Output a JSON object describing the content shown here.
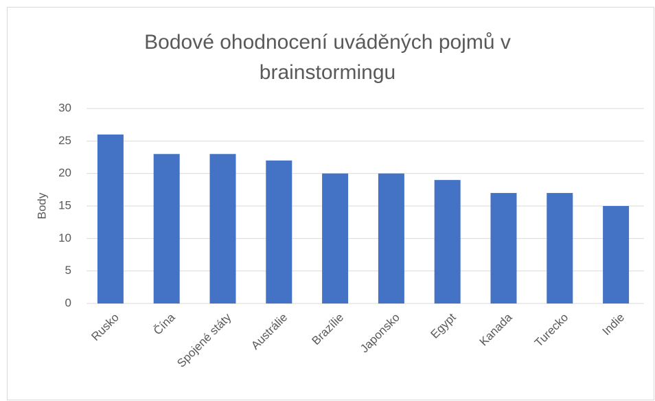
{
  "chart_data": {
    "type": "bar",
    "title": "Bodové ohodnocení uváděných pojmů v brainstormingu",
    "y_label": "Body",
    "categories": [
      "Rusko",
      "Čína",
      "Spojené státy",
      "Austrálie",
      "Brazílie",
      "Japonsko",
      "Egypt",
      "Kanada",
      "Turecko",
      "Indie"
    ],
    "values": [
      26,
      23,
      23,
      22,
      20,
      20,
      19,
      17,
      17,
      15
    ],
    "color": "#4472c4",
    "ylim": [
      0,
      30
    ],
    "yticks": [
      0,
      5,
      10,
      15,
      20,
      25,
      30
    ],
    "grid": true
  }
}
